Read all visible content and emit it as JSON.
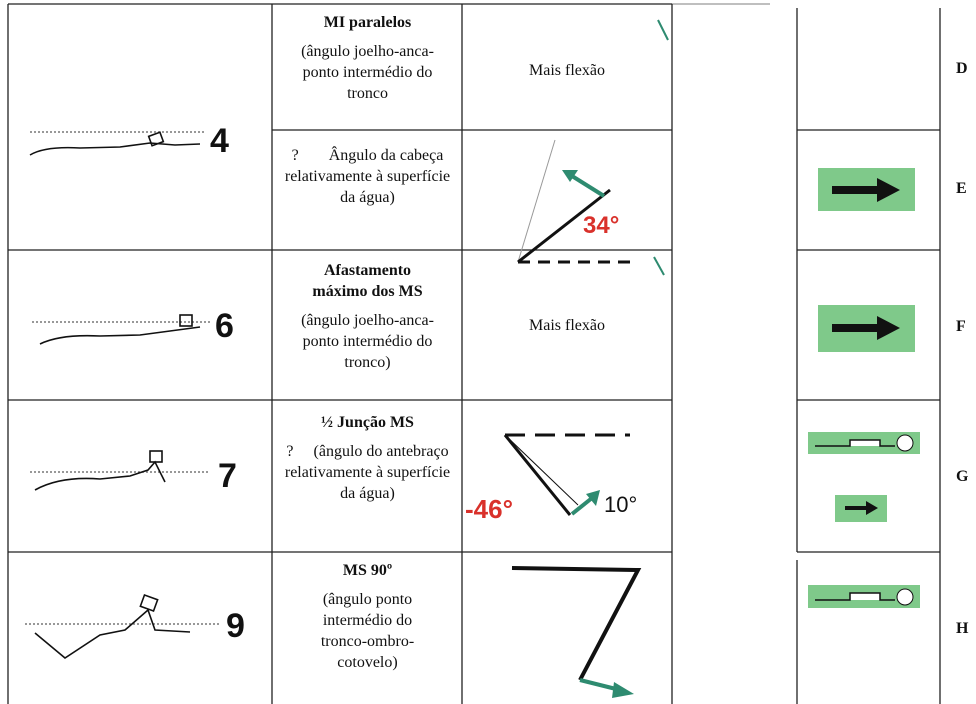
{
  "rows": [
    {
      "figure_number": "4",
      "title": "MI paralelos",
      "detail": "(ângulo joelho-anca-ponto intermédio do tronco",
      "result": "Mais flexão",
      "letter": "D"
    },
    {
      "marker": "?",
      "detail": "Ângulo da cabeça relativamente à superfície da água)",
      "angle": "34°",
      "letter": "E"
    },
    {
      "figure_number": "6",
      "title": "Afastamento máximo dos  MS",
      "detail": "(ângulo joelho-anca-ponto intermédio do tronco)",
      "result": "Mais flexão",
      "letter": "F"
    },
    {
      "figure_number": "7",
      "title": "½ Junção MS",
      "marker": "?",
      "detail": "(ângulo do antebraço relativamente à superfície da água)",
      "angle": "-46°",
      "angle_2": "10°",
      "letter": "G"
    },
    {
      "figure_number": "9",
      "title": "MS 90º",
      "detail": "(ângulo ponto intermédio do tronco-ombro-cotovelo)",
      "letter": "H"
    }
  ]
}
